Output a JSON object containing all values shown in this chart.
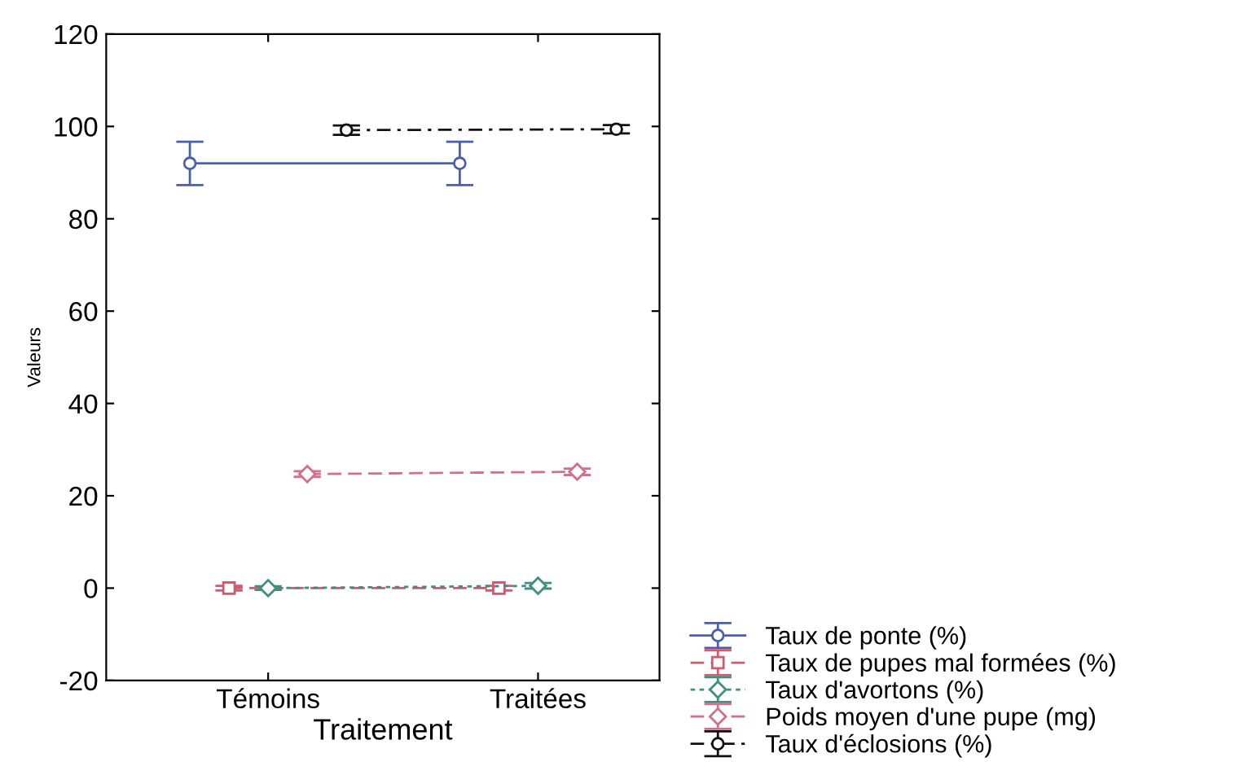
{
  "chart_data": {
    "type": "line",
    "xlabel": "Traitement",
    "ylabel": "Valeurs",
    "categories": [
      "Témoins",
      "Traitées"
    ],
    "ylim": [
      -20,
      120
    ],
    "yticks": [
      -20,
      0,
      20,
      40,
      60,
      80,
      100,
      120
    ],
    "grid": false,
    "legend": "bottom right",
    "series": [
      {
        "name": "Taux de ponte (%)",
        "color": "#4a5fa8",
        "values": [
          92,
          92
        ],
        "errors": [
          4.7,
          4.7
        ],
        "marker": "circle",
        "line_style": "solid"
      },
      {
        "name": "Taux de pupes mal formées (%)",
        "color": "#d05a6e",
        "values": [
          0,
          0
        ],
        "errors": [
          0.5,
          0.5
        ],
        "marker": "square",
        "line_style": "dashed"
      },
      {
        "name": "Taux d'avortons (%)",
        "color": "#3f8f7f",
        "values": [
          0,
          0.5
        ],
        "errors": [
          0.4,
          0.6
        ],
        "marker": "diamond",
        "line_style": "dotted"
      },
      {
        "name": "Poids moyen d'une pupe (mg)",
        "color": "#d0708a",
        "values": [
          24.7,
          25.2
        ],
        "errors": [
          0.6,
          0.7
        ],
        "marker": "diamond",
        "line_style": "dashed"
      },
      {
        "name": "Taux d'éclosions (%)",
        "color": "#111111",
        "values": [
          99.2,
          99.4
        ],
        "errors": [
          1.0,
          0.9
        ],
        "marker": "circle",
        "line_style": "dashdot"
      }
    ]
  }
}
